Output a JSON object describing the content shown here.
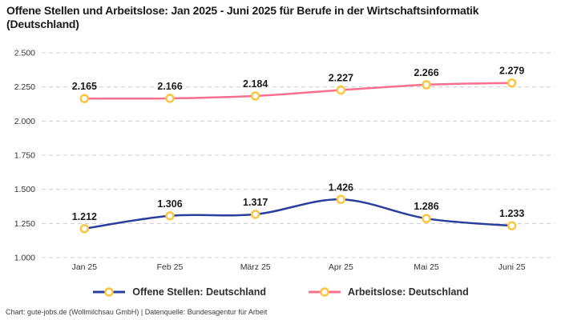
{
  "title": "Offene Stellen und Arbeitslose: Jan 2025 - Juni 2025 für Berufe in der Wirtschaftsinformatik (Deutschland)",
  "footer": "Chart: gute-jobs.de (Wollmilchsau GmbH) | Datenquelle: Bundesagentur für Arbeit",
  "colors": {
    "series_blue": "#2a3f9d",
    "series_pink": "#f7708f",
    "marker_ring": "#fdc33c",
    "marker_fill": "#ffffff",
    "grid": "#cccccc",
    "tick_text": "#333333",
    "data_label_text": "#1a1a1a"
  },
  "legend": [
    {
      "id": "offene-stellen",
      "label": "Offene Stellen: Deutschland",
      "color": "#2a3f9d"
    },
    {
      "id": "arbeitslose",
      "label": "Arbeitslose: Deutschland",
      "color": "#f7708f"
    }
  ],
  "chart_data": {
    "type": "line",
    "categories": [
      "Jan 25",
      "Feb 25",
      "März 25",
      "Apr 25",
      "Mai 25",
      "Juni 25"
    ],
    "series": [
      {
        "name": "Offene Stellen: Deutschland",
        "color": "#2a3f9d",
        "values": [
          1212,
          1306,
          1317,
          1426,
          1286,
          1233
        ],
        "labels": [
          "1.212",
          "1.306",
          "1.317",
          "1.426",
          "1.286",
          "1.233"
        ]
      },
      {
        "name": "Arbeitslose: Deutschland",
        "color": "#f7708f",
        "values": [
          2165,
          2166,
          2184,
          2227,
          2266,
          2279
        ],
        "labels": [
          "2.165",
          "2.166",
          "2.184",
          "2.227",
          "2.266",
          "2.279"
        ]
      }
    ],
    "title": "Offene Stellen und Arbeitslose: Jan 2025 - Juni 2025 für Berufe in der Wirtschaftsinformatik (Deutschland)",
    "xlabel": "",
    "ylabel": "",
    "ylim": [
      1000,
      2500
    ],
    "yticks": {
      "values": [
        1000,
        1250,
        1500,
        1750,
        2000,
        2250,
        2500
      ],
      "labels": [
        "1.000",
        "1.250",
        "1.500",
        "1.750",
        "2.000",
        "2.250",
        "2.500"
      ]
    },
    "grid": "horizontal-dashed",
    "legend_position": "bottom",
    "marker": {
      "shape": "circle",
      "fill": "#ffffff",
      "stroke": "#fdc33c"
    }
  }
}
